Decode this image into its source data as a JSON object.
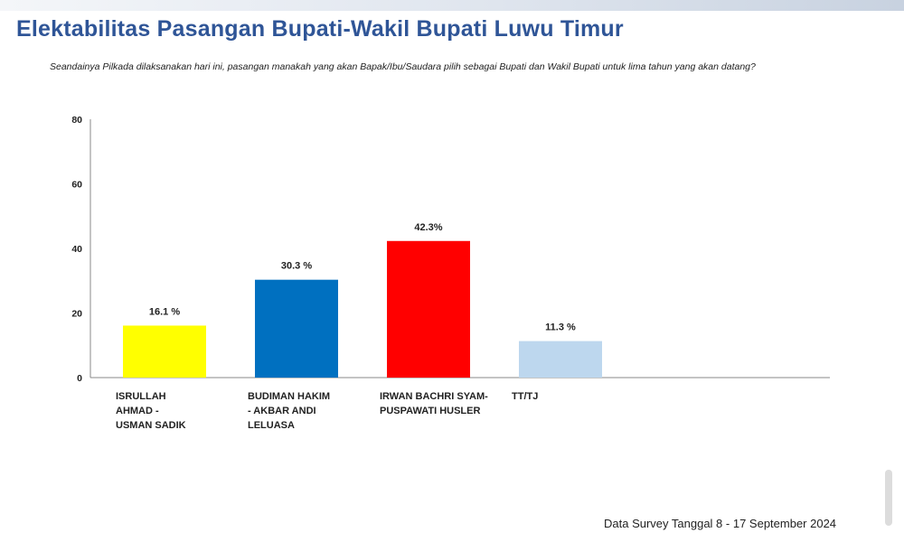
{
  "title": "Elektabilitas Pasangan Bupati-Wakil Bupati Luwu Timur",
  "question": "Seandainya Pilkada dilaksanakan hari ini, pasangan manakah yang akan Bapak/Ibu/Saudara pilih sebagai Bupati dan Wakil Bupati untuk lima tahun yang akan datang?",
  "footer": "Data Survey Tanggal 8 - 17 September 2024",
  "chart_data": {
    "type": "bar",
    "categories": [
      [
        "ISRULLAH",
        "AHMAD -",
        "USMAN SADIK"
      ],
      [
        "BUDIMAN HAKIM",
        "- AKBAR ANDI",
        "LELUASA"
      ],
      [
        "IRWAN BACHRI SYAM-",
        "PUSPAWATI HUSLER"
      ],
      [
        "TT/TJ"
      ]
    ],
    "values": [
      16.1,
      30.3,
      42.3,
      11.3
    ],
    "data_labels": [
      "16.1 %",
      "30.3 %",
      "42.3%",
      "11.3 %"
    ],
    "colors": [
      "#ffff00",
      "#0070c0",
      "#ff0000",
      "#bdd7ee"
    ],
    "yticks": [
      0,
      20,
      40,
      60,
      80
    ],
    "ylim": [
      0,
      80
    ],
    "grid": false,
    "legend": "none"
  }
}
